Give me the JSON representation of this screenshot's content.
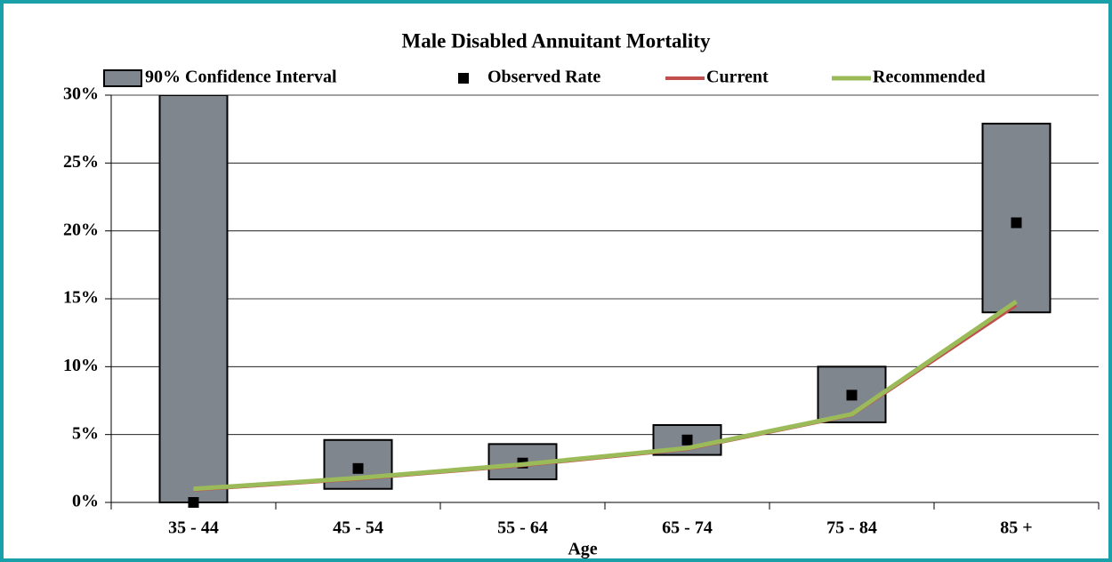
{
  "chart_data": {
    "type": "combo",
    "title": "Male Disabled Annuitant Mortality",
    "x_label": "Age",
    "categories": [
      "35 - 44",
      "45 - 54",
      "55 - 64",
      "65 - 74",
      "75 - 84",
      "85 +"
    ],
    "ylim": [
      0,
      30
    ],
    "yticks": [
      {
        "value": 0,
        "label": "0%"
      },
      {
        "value": 5,
        "label": "5%"
      },
      {
        "value": 10,
        "label": "10%"
      },
      {
        "value": 15,
        "label": "15%"
      },
      {
        "value": 20,
        "label": "20%"
      },
      {
        "value": 25,
        "label": "25%"
      },
      {
        "value": 30,
        "label": "30%"
      }
    ],
    "grid": true,
    "legend": "top",
    "series": [
      {
        "name": "90% Confidence Interval",
        "type": "range-bar",
        "color": "#7f868e",
        "low": [
          0,
          1.0,
          1.7,
          3.5,
          5.9,
          14.0
        ],
        "high": [
          30,
          4.6,
          4.3,
          5.7,
          10.0,
          27.9
        ]
      },
      {
        "name": "Observed Rate",
        "type": "scatter",
        "color": "#000000",
        "values": [
          0.0,
          2.5,
          2.9,
          4.6,
          7.9,
          20.6
        ]
      },
      {
        "name": "Current",
        "type": "line",
        "color": "#c0504d",
        "values": [
          0.9,
          1.7,
          2.7,
          3.9,
          6.4,
          14.5
        ]
      },
      {
        "name": "Recommended",
        "type": "line",
        "color": "#9bbb59",
        "values": [
          1.0,
          1.8,
          2.8,
          4.0,
          6.5,
          14.8
        ]
      }
    ]
  }
}
